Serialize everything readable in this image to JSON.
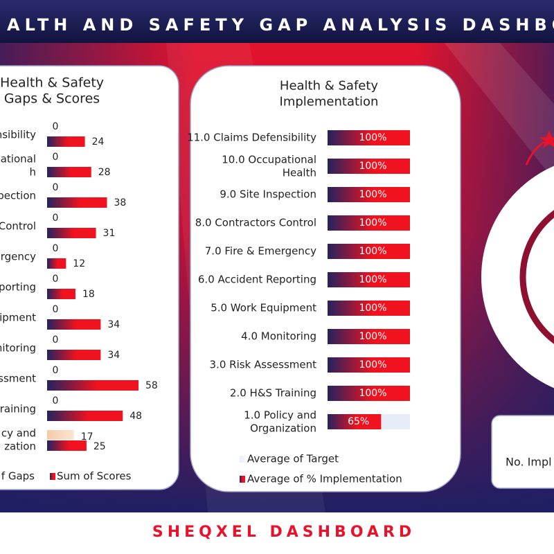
{
  "header": {
    "title": "ALTH AND SAFETY GAP ANALYSIS DASHBOA"
  },
  "chart_data": [
    {
      "type": "bar",
      "title": "Health & Safety\nGaps & Scores",
      "categories": [
        "efensibility",
        "ational\nh",
        "spection",
        "Control",
        "rgency",
        "porting",
        "ipment",
        "nitoring",
        "ssessment",
        "raining",
        "cy and\nzation"
      ],
      "series": [
        {
          "name": "f Gaps",
          "color": "#f7c9a8",
          "values": [
            0,
            0,
            0,
            0,
            0,
            0,
            0,
            0,
            0,
            0,
            17
          ]
        },
        {
          "name": "Sum of Scores",
          "color": "#f0121e",
          "values": [
            24,
            28,
            38,
            31,
            12,
            18,
            34,
            34,
            58,
            48,
            25
          ]
        }
      ],
      "xlim": [
        0,
        60
      ]
    },
    {
      "type": "bar",
      "title": "Health & Safety\nImplementation",
      "categories": [
        "11.0 Claims Defensibility",
        "10.0 Occupational\nHealth",
        "9.0 Site Inspection",
        "8.0 Contractors Control",
        "7.0 Fire & Emergency",
        "6.0 Accident Reporting",
        "5.0 Work Equipment",
        "4.0 Monitoring",
        "3.0 Risk Assessment",
        "2.0 H&S Training",
        "1.0 Policy and\nOrganization"
      ],
      "series": [
        {
          "name": "Average of Target",
          "color": "#e6edf8",
          "values": [
            100,
            100,
            100,
            100,
            100,
            100,
            100,
            100,
            100,
            100,
            100
          ]
        },
        {
          "name": "Average of % Implementation",
          "color": "#f0121e",
          "values": [
            100,
            100,
            100,
            100,
            100,
            100,
            100,
            100,
            100,
            100,
            65
          ],
          "value_labels": [
            "100%",
            "100%",
            "100%",
            "100%",
            "100%",
            "100%",
            "100%",
            "100%",
            "100%",
            "100%",
            "65%"
          ]
        }
      ],
      "xlim": [
        0,
        100
      ]
    }
  ],
  "panel": {
    "label": "No. Impl"
  },
  "footer": {
    "title": "SHEQXEL DASHBOARD"
  }
}
